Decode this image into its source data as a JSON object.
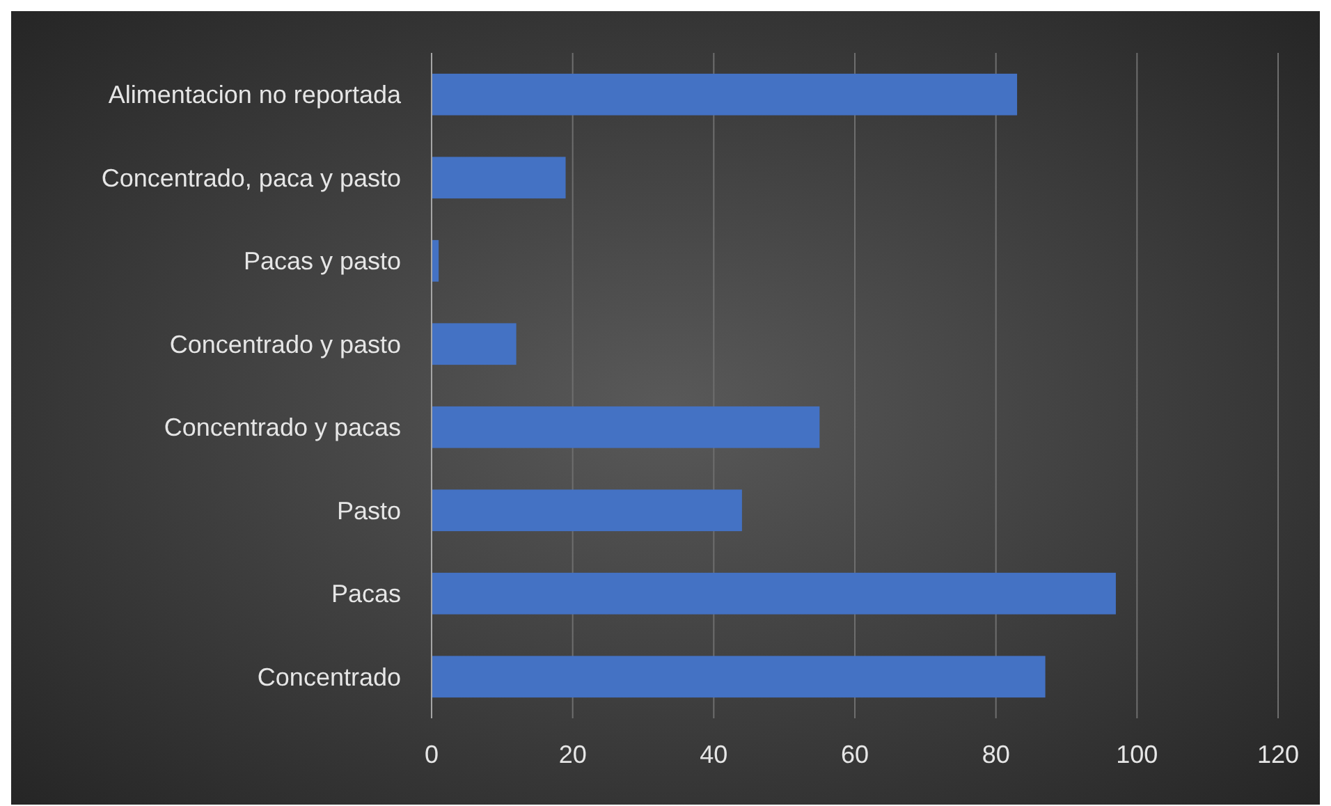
{
  "chart_data": {
    "type": "bar",
    "orientation": "horizontal",
    "categories": [
      "Alimentacion no reportada",
      "Concentrado, paca y pasto",
      "Pacas y pasto",
      "Concentrado y pasto",
      "Concentrado y pacas",
      "Pasto",
      "Pacas",
      "Concentrado"
    ],
    "values": [
      83,
      19,
      1,
      12,
      55,
      44,
      97,
      87
    ],
    "color": "#4472c4",
    "xlim": [
      0,
      120
    ],
    "xticks": [
      0,
      20,
      40,
      60,
      80,
      100,
      120
    ],
    "grid": "x"
  }
}
